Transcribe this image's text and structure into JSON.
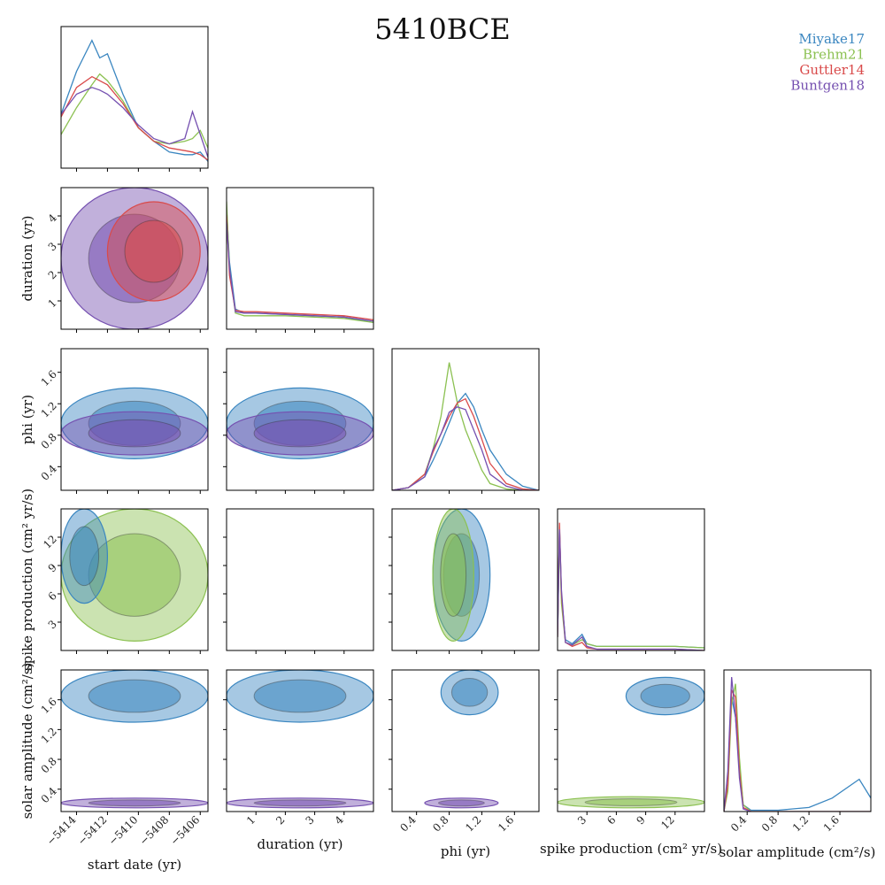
{
  "title": "5410BCE",
  "colors": {
    "Miyake17": "#3a86c0",
    "Brehm21": "#8cc152",
    "Guttler14": "#d94a4a",
    "Buntgen18": "#7550b0"
  },
  "chart_data": {
    "type": "corner",
    "title": "5410BCE",
    "legend_position": "top-right",
    "series": [
      {
        "name": "Miyake17",
        "color": "#3a86c0"
      },
      {
        "name": "Brehm21",
        "color": "#8cc152"
      },
      {
        "name": "Guttler14",
        "color": "#d94a4a"
      },
      {
        "name": "Buntgen18",
        "color": "#7550b0"
      }
    ],
    "parameters": [
      {
        "key": "start_date",
        "label": "start date (yr)",
        "range": [
          -5415,
          -5405.5
        ],
        "ticks": [
          -5414,
          -5412,
          -5410,
          -5408,
          -5406
        ],
        "tick_labels": [
          "−5414",
          "−5412",
          "−5410",
          "−5408",
          "−5406"
        ]
      },
      {
        "key": "duration",
        "label": "duration (yr)",
        "range": [
          0,
          5
        ],
        "ticks": [
          1,
          2,
          3,
          4
        ],
        "tick_labels": [
          "1",
          "2",
          "3",
          "4"
        ]
      },
      {
        "key": "phi",
        "label": "phi (yr)",
        "range": [
          0.1,
          1.9
        ],
        "ticks": [
          0.4,
          0.8,
          1.2,
          1.6
        ],
        "tick_labels": [
          "0.4",
          "0.8",
          "1.2",
          "1.6"
        ]
      },
      {
        "key": "spike_production",
        "label": "spike production (cm² yr/s)",
        "range": [
          0,
          15
        ],
        "ticks": [
          3,
          6,
          9,
          12
        ],
        "tick_labels": [
          "3",
          "6",
          "9",
          "12"
        ]
      },
      {
        "key": "solar_amplitude",
        "label": "solar amplitude (cm²/s)",
        "range": [
          0.1,
          2.0
        ],
        "ticks": [
          0.4,
          0.8,
          1.2,
          1.6
        ],
        "tick_labels": [
          "0.4",
          "0.8",
          "1.2",
          "1.6"
        ]
      }
    ],
    "marginals": {
      "start_date": {
        "x": [
          -5415,
          -5414,
          -5413,
          -5412.5,
          -5412,
          -5411,
          -5410,
          -5409,
          -5408,
          -5407,
          -5406.5,
          -5406,
          -5405.5
        ],
        "Miyake17": [
          0.4,
          0.72,
          0.95,
          0.82,
          0.85,
          0.55,
          0.3,
          0.2,
          0.12,
          0.1,
          0.1,
          0.12,
          0.05
        ],
        "Brehm21": [
          0.25,
          0.45,
          0.62,
          0.7,
          0.65,
          0.5,
          0.3,
          0.2,
          0.18,
          0.2,
          0.22,
          0.28,
          0.15
        ],
        "Guttler14": [
          0.38,
          0.6,
          0.68,
          0.65,
          0.62,
          0.48,
          0.3,
          0.2,
          0.15,
          0.13,
          0.12,
          0.1,
          0.06
        ],
        "Buntgen18": [
          0.4,
          0.55,
          0.6,
          0.58,
          0.55,
          0.45,
          0.32,
          0.22,
          0.18,
          0.22,
          0.42,
          0.25,
          0.08
        ]
      },
      "duration": {
        "x": [
          0,
          0.1,
          0.3,
          0.6,
          1,
          2,
          3,
          4,
          5
        ],
        "Miyake17": [
          0.9,
          0.5,
          0.15,
          0.12,
          0.12,
          0.11,
          0.1,
          0.09,
          0.05
        ],
        "Brehm21": [
          0.95,
          0.45,
          0.12,
          0.1,
          0.1,
          0.1,
          0.09,
          0.08,
          0.05
        ],
        "Guttler14": [
          0.85,
          0.4,
          0.14,
          0.13,
          0.13,
          0.12,
          0.11,
          0.1,
          0.07
        ],
        "Buntgen18": [
          0.8,
          0.45,
          0.13,
          0.12,
          0.12,
          0.11,
          0.1,
          0.09,
          0.06
        ]
      },
      "phi": {
        "x": [
          0.1,
          0.3,
          0.5,
          0.6,
          0.7,
          0.8,
          0.9,
          1.0,
          1.1,
          1.2,
          1.3,
          1.5,
          1.7,
          1.9
        ],
        "Miyake17": [
          0.0,
          0.02,
          0.1,
          0.22,
          0.35,
          0.5,
          0.65,
          0.72,
          0.62,
          0.45,
          0.3,
          0.12,
          0.03,
          0.0
        ],
        "Brehm21": [
          0.0,
          0.02,
          0.12,
          0.3,
          0.55,
          0.95,
          0.65,
          0.45,
          0.3,
          0.15,
          0.05,
          0.01,
          0.0,
          0.0
        ],
        "Guttler14": [
          0.0,
          0.02,
          0.12,
          0.28,
          0.42,
          0.55,
          0.65,
          0.68,
          0.55,
          0.38,
          0.2,
          0.05,
          0.01,
          0.0
        ],
        "Buntgen18": [
          0.0,
          0.02,
          0.1,
          0.3,
          0.42,
          0.58,
          0.62,
          0.6,
          0.45,
          0.3,
          0.12,
          0.03,
          0.0,
          0.0
        ]
      },
      "spike_production": {
        "x": [
          0,
          0.2,
          0.4,
          0.8,
          1.5,
          2.5,
          3,
          4,
          6,
          9,
          12,
          15
        ],
        "Miyake17": [
          0.1,
          0.92,
          0.4,
          0.08,
          0.05,
          0.12,
          0.05,
          0.03,
          0.03,
          0.03,
          0.03,
          0.02
        ],
        "Brehm21": [
          0.1,
          0.85,
          0.35,
          0.06,
          0.04,
          0.08,
          0.05,
          0.03,
          0.03,
          0.03,
          0.03,
          0.02
        ],
        "Guttler14": [
          0.1,
          0.95,
          0.42,
          0.06,
          0.03,
          0.06,
          0.02,
          0.01,
          0.01,
          0.01,
          0.01,
          0.0
        ],
        "Buntgen18": [
          0.1,
          0.9,
          0.45,
          0.06,
          0.04,
          0.1,
          0.03,
          0.01,
          0.01,
          0.01,
          0.01,
          0.0
        ]
      },
      "solar_amplitude": {
        "x": [
          0.1,
          0.15,
          0.2,
          0.25,
          0.3,
          0.35,
          0.45,
          0.8,
          1.2,
          1.5,
          1.7,
          1.85,
          2.0
        ],
        "Miyake17": [
          0.0,
          0.2,
          0.85,
          0.7,
          0.35,
          0.05,
          0.01,
          0.01,
          0.03,
          0.1,
          0.18,
          0.24,
          0.1
        ],
        "Brehm21": [
          0.0,
          0.15,
          0.8,
          0.95,
          0.4,
          0.05,
          0.0,
          0.0,
          0.0,
          0.0,
          0.0,
          0.0,
          0.0
        ],
        "Guttler14": [
          0.0,
          0.2,
          0.9,
          0.85,
          0.3,
          0.03,
          0.0,
          0.0,
          0.0,
          0.0,
          0.0,
          0.0,
          0.0
        ],
        "Buntgen18": [
          0.0,
          0.3,
          1.0,
          0.7,
          0.25,
          0.02,
          0.0,
          0.0,
          0.0,
          0.0,
          0.0,
          0.0,
          0.0
        ]
      }
    },
    "joint_regions": [
      {
        "row": "duration",
        "col": "start_date",
        "series": "Buntgen18",
        "x": [
          -5415,
          -5405.5
        ],
        "y": [
          0,
          5
        ]
      },
      {
        "row": "duration",
        "col": "start_date",
        "series": "Guttler14",
        "x": [
          -5412,
          -5406
        ],
        "y": [
          1,
          4.5
        ]
      },
      {
        "row": "phi",
        "col": "start_date",
        "series": "Miyake17",
        "x": [
          -5415,
          -5405.5
        ],
        "y": [
          0.5,
          1.4
        ]
      },
      {
        "row": "phi",
        "col": "start_date",
        "series": "Buntgen18",
        "x": [
          -5415,
          -5405.5
        ],
        "y": [
          0.55,
          1.1
        ]
      },
      {
        "row": "phi",
        "col": "duration",
        "series": "Miyake17",
        "x": [
          0,
          5
        ],
        "y": [
          0.5,
          1.4
        ]
      },
      {
        "row": "phi",
        "col": "duration",
        "series": "Buntgen18",
        "x": [
          0,
          5
        ],
        "y": [
          0.55,
          1.1
        ]
      },
      {
        "row": "spike_production",
        "col": "start_date",
        "series": "Brehm21",
        "x": [
          -5415,
          -5405.5
        ],
        "y": [
          1,
          15
        ]
      },
      {
        "row": "spike_production",
        "col": "start_date",
        "series": "Miyake17",
        "x": [
          -5415,
          -5412
        ],
        "y": [
          5,
          15
        ]
      },
      {
        "row": "spike_production",
        "col": "phi",
        "series": "Miyake17",
        "x": [
          0.6,
          1.3
        ],
        "y": [
          1,
          15
        ]
      },
      {
        "row": "spike_production",
        "col": "phi",
        "series": "Brehm21",
        "x": [
          0.6,
          1.1
        ],
        "y": [
          1,
          15
        ]
      },
      {
        "row": "solar_amplitude",
        "col": "start_date",
        "series": "Miyake17",
        "x": [
          -5415,
          -5405.5
        ],
        "y": [
          1.3,
          2.0
        ]
      },
      {
        "row": "solar_amplitude",
        "col": "start_date",
        "series": "Buntgen18",
        "x": [
          -5415,
          -5405.5
        ],
        "y": [
          0.15,
          0.28
        ]
      },
      {
        "row": "solar_amplitude",
        "col": "duration",
        "series": "Miyake17",
        "x": [
          0,
          5
        ],
        "y": [
          1.3,
          2.0
        ]
      },
      {
        "row": "solar_amplitude",
        "col": "duration",
        "series": "Buntgen18",
        "x": [
          0,
          5
        ],
        "y": [
          0.15,
          0.28
        ]
      },
      {
        "row": "solar_amplitude",
        "col": "phi",
        "series": "Miyake17",
        "x": [
          0.7,
          1.4
        ],
        "y": [
          1.4,
          2.0
        ]
      },
      {
        "row": "solar_amplitude",
        "col": "phi",
        "series": "Buntgen18",
        "x": [
          0.5,
          1.4
        ],
        "y": [
          0.15,
          0.28
        ]
      },
      {
        "row": "solar_amplitude",
        "col": "spike_production",
        "series": "Miyake17",
        "x": [
          7,
          15
        ],
        "y": [
          1.4,
          1.9
        ]
      },
      {
        "row": "solar_amplitude",
        "col": "spike_production",
        "series": "Brehm21",
        "x": [
          0,
          15
        ],
        "y": [
          0.15,
          0.3
        ]
      }
    ]
  }
}
